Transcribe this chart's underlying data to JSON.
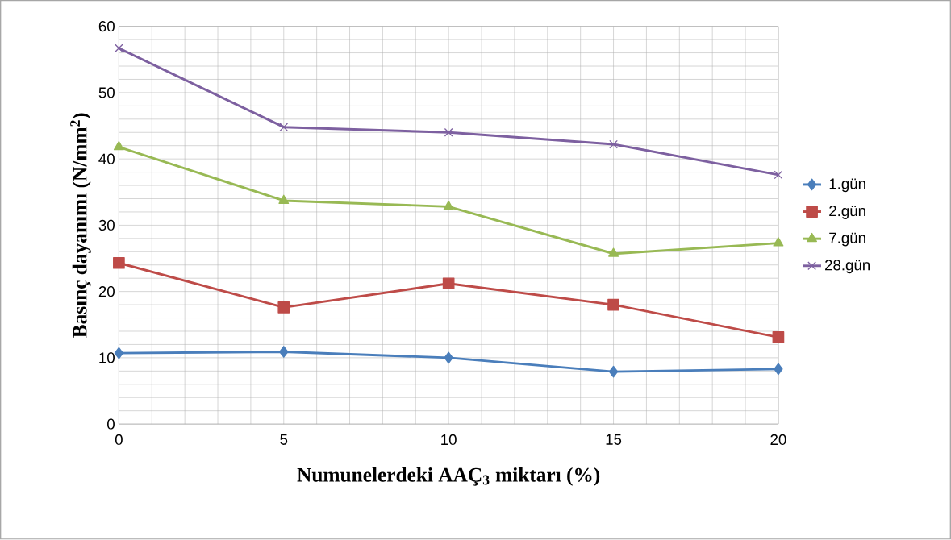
{
  "chart_data": {
    "type": "line",
    "xlabel": "Numunelerdeki AAÇ$_{3}$ miktarı (%)",
    "ylabel": "Basınç dayanımı (N/mm$^{2}$)",
    "x": [
      0,
      5,
      10,
      15,
      20
    ],
    "xlim": [
      0,
      20
    ],
    "xticks": [
      0,
      5,
      10,
      15,
      20
    ],
    "ylim": [
      0,
      60
    ],
    "yticks": [
      0,
      10,
      20,
      30,
      40,
      50,
      60
    ],
    "grid": true,
    "legend": "right",
    "line_style": "solid",
    "series": [
      {
        "name": "1.gün",
        "color": "#4a7ebb",
        "marker": "diamond",
        "values": [
          10.7,
          10.9,
          10.0,
          7.9,
          8.3
        ]
      },
      {
        "name": "2.gün",
        "color": "#be4b48",
        "marker": "square",
        "values": [
          24.3,
          17.6,
          21.2,
          18.0,
          13.1
        ]
      },
      {
        "name": "7.gün",
        "color": "#98b954",
        "marker": "triangle",
        "values": [
          41.8,
          33.7,
          32.8,
          25.7,
          27.3
        ]
      },
      {
        "name": "28.gün",
        "color": "#7d60a0",
        "marker": "cross",
        "values": [
          56.7,
          44.8,
          44.0,
          42.2,
          37.6
        ]
      }
    ]
  }
}
